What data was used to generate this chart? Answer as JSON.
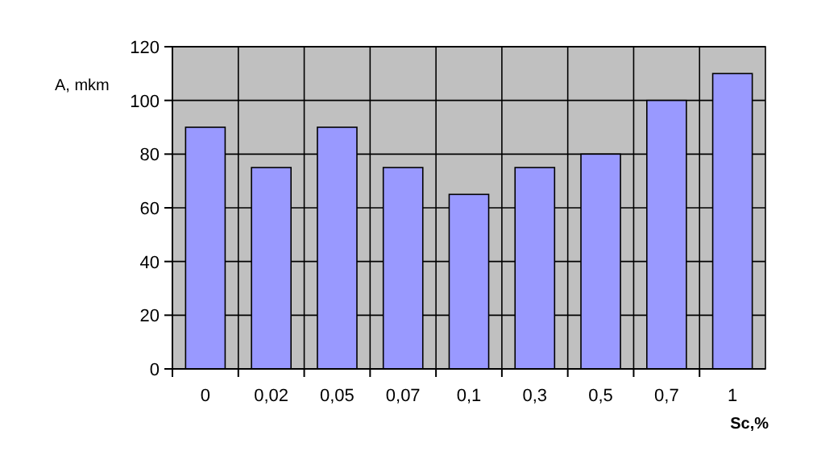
{
  "chart_data": {
    "type": "bar",
    "xlabel": "Sc,%",
    "ylabel": "A, mkm",
    "categories": [
      "0",
      "0,02",
      "0,05",
      "0,07",
      "0,1",
      "0,3",
      "0,5",
      "0,7",
      "1"
    ],
    "values": [
      90,
      75,
      90,
      75,
      65,
      75,
      80,
      100,
      110
    ],
    "color": "#9999ff",
    "ylim": [
      0,
      120
    ],
    "yticks": [
      0,
      20,
      40,
      60,
      80,
      100,
      120
    ],
    "grid": true
  }
}
